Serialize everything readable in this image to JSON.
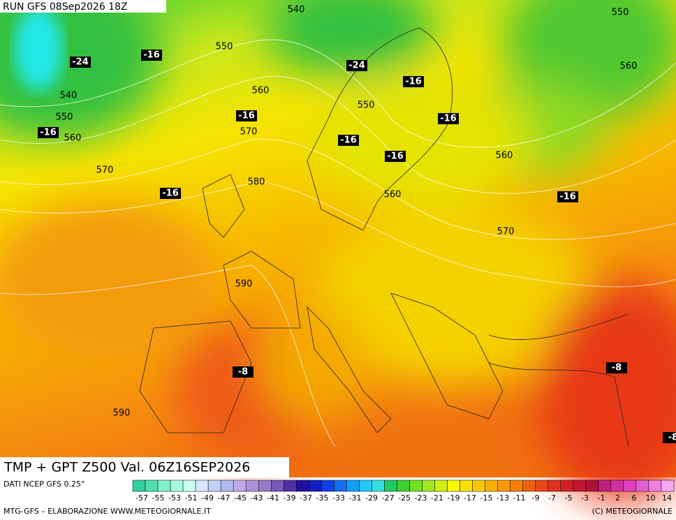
{
  "header": {
    "run": "RUN GFS 08Sep2026 18Z"
  },
  "title": "TMP + GPT Z500 Val. 06Z16SEP2026",
  "source": "DATI NCEP GFS 0.25°",
  "credit_left": "MTG-GFS – ELABORAZIONE WWW.METEOGIORNALE.IT",
  "credit_right": "(C) METEOGIORNALE",
  "geopotential_labels": [
    "540",
    "550",
    "550",
    "560",
    "540",
    "560",
    "550",
    "550",
    "560",
    "570",
    "570",
    "580",
    "560",
    "560",
    "570",
    "590",
    "590"
  ],
  "temperature_labels": [
    "-24",
    "-16",
    "-24",
    "-16",
    "-16",
    "-16",
    "-16",
    "-16",
    "-16",
    "-16",
    "-16",
    "-8",
    "-8",
    "-8"
  ],
  "colorbar_labels": [
    "-57",
    "-55",
    "-53",
    "-51",
    "-49",
    "-47",
    "-45",
    "-43",
    "-41",
    "-39",
    "-37",
    "-35",
    "-33",
    "-31",
    "-29",
    "-27",
    "-25",
    "-23",
    "-21",
    "-19",
    "-17",
    "-15",
    "-13",
    "-11",
    "-9",
    "-7",
    "-5",
    "-3",
    "-1",
    "2",
    "6",
    "10",
    "14"
  ]
}
